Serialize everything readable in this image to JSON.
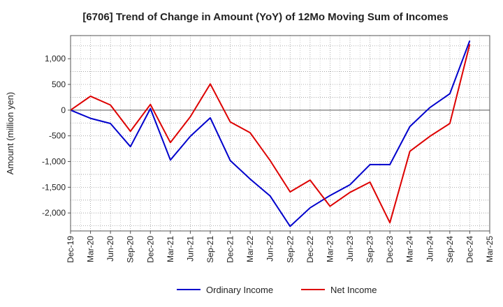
{
  "chart_data": {
    "type": "line",
    "title": "[6706]  Trend of Change in Amount (YoY) of 12Mo Moving Sum of Incomes",
    "ylabel": "Amount (million yen)",
    "xlabel": "",
    "x_ticks": [
      "Dec-19",
      "Mar-20",
      "Jun-20",
      "Sep-20",
      "Dec-20",
      "Mar-21",
      "Jun-21",
      "Sep-21",
      "Dec-21",
      "Mar-22",
      "Jun-22",
      "Sep-22",
      "Dec-22",
      "Mar-23",
      "Jun-23",
      "Sep-23",
      "Dec-23",
      "Mar-24",
      "Jun-24",
      "Sep-24",
      "Dec-24",
      "Mar-25"
    ],
    "y_ticks": [
      1000,
      500,
      0,
      -500,
      -1000,
      -1500,
      -2000
    ],
    "y_tick_labels": [
      "1,000",
      "500",
      "0",
      "-500",
      "-1,000",
      "-1,500",
      "-2,000"
    ],
    "ylim": [
      -2350,
      1450
    ],
    "grid": true,
    "legend_position": "bottom",
    "series": [
      {
        "name": "Ordinary Income",
        "color": "#0000cc",
        "values": [
          0,
          -160,
          -260,
          -710,
          30,
          -970,
          -510,
          -150,
          -980,
          -1340,
          -1670,
          -2260,
          -1900,
          -1660,
          -1450,
          -1060,
          -1060,
          -320,
          50,
          320,
          1350
        ]
      },
      {
        "name": "Net Income",
        "color": "#dd0000",
        "values": [
          0,
          270,
          100,
          -410,
          110,
          -630,
          -130,
          510,
          -230,
          -440,
          -980,
          -1590,
          -1360,
          -1870,
          -1600,
          -1400,
          -2190,
          -800,
          -510,
          -260,
          1280
        ]
      }
    ]
  }
}
